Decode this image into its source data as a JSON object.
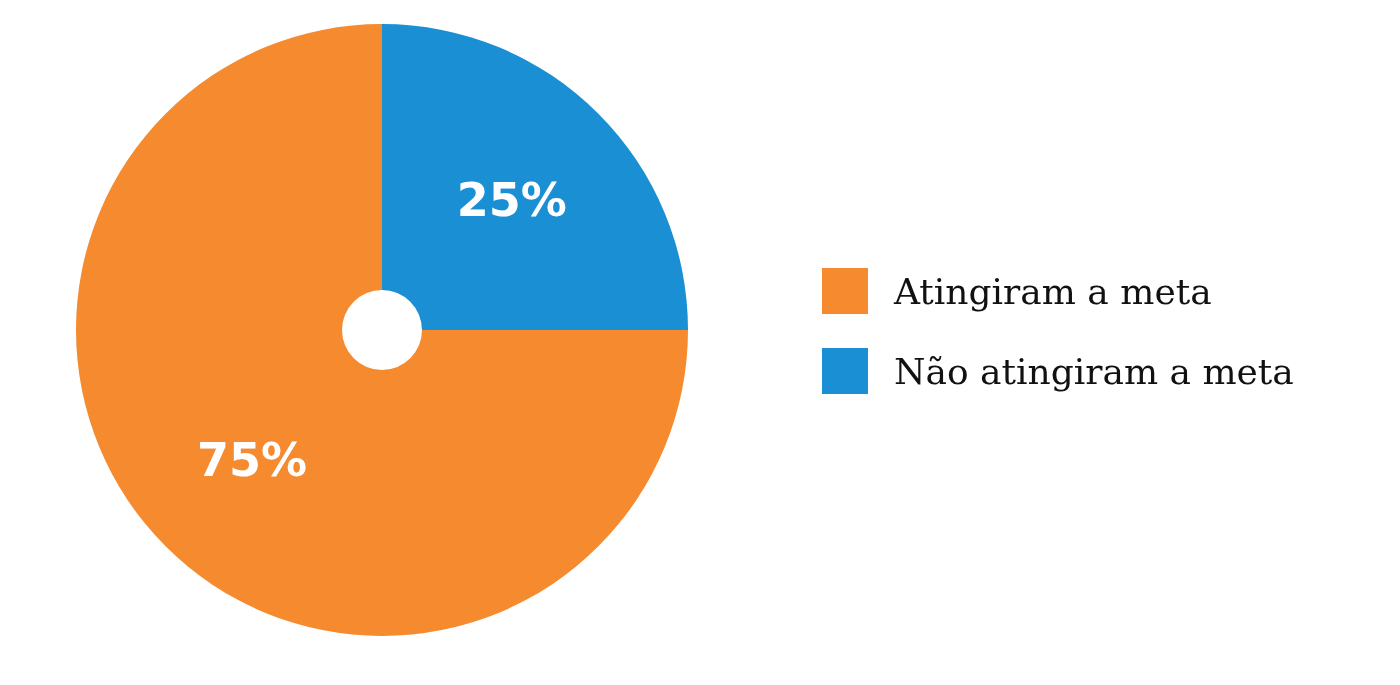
{
  "chart_data": {
    "type": "donut",
    "categories": [
      "Atingiram a meta",
      "Não atingiram a meta"
    ],
    "values": [
      75,
      25
    ],
    "colors": [
      "#f58a2f",
      "#1a8fd3"
    ],
    "value_labels": [
      "75%",
      "25%"
    ],
    "legend": "right"
  }
}
